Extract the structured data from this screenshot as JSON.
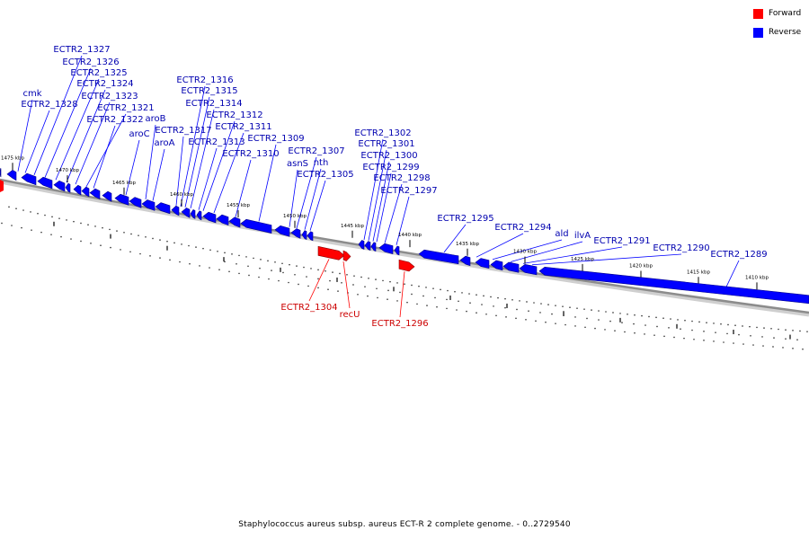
{
  "legend": {
    "forward_label": "Forward",
    "reverse_label": "Reverse",
    "forward_color": "#ff0000",
    "reverse_color": "#0000ff"
  },
  "footer": "Staphylococcus aureus subsp. aureus ECT-R 2 complete genome. - 0..2729540",
  "colors": {
    "reverse_text": "#0000b0",
    "forward_text": "#cc0000",
    "backbone": "#8c8c8c"
  },
  "ticks": [
    "1475 kbp",
    "1470 kbp",
    "1465 kbp",
    "1460 kbp",
    "1455 kbp",
    "1450 kbp",
    "1445 kbp",
    "1440 kbp",
    "1435 kbp",
    "1430 kbp",
    "1425 kbp",
    "1420 kbp",
    "1415 kbp",
    "1410 kbp"
  ],
  "reverse_labels": [
    "cmk",
    "ECTR2_1328",
    "ECTR2_1327",
    "ECTR2_1326",
    "ECTR2_1325",
    "ECTR2_1324",
    "ECTR2_1323",
    "ECTR2_1321",
    "ECTR2_1322",
    "aroB",
    "aroC",
    "aroA",
    "ECTR2_1317",
    "ECTR2_1316",
    "ECTR2_1315",
    "ECTR2_1314",
    "ECTR2_1313",
    "ECTR2_1312",
    "ECTR2_1311",
    "ECTR2_1310",
    "ECTR2_1309",
    "ECTR2_1307",
    "asnS",
    "nth",
    "ECTR2_1305",
    "ECTR2_1302",
    "ECTR2_1301",
    "ECTR2_1300",
    "ECTR2_1299",
    "ECTR2_1298",
    "ECTR2_1297",
    "ECTR2_1295",
    "ECTR2_1294",
    "ald",
    "ilvA",
    "ECTR2_1291",
    "ECTR2_1290",
    "ECTR2_1289"
  ],
  "forward_labels": [
    "ECTR2_1304",
    "recU",
    "ECTR2_1296"
  ]
}
